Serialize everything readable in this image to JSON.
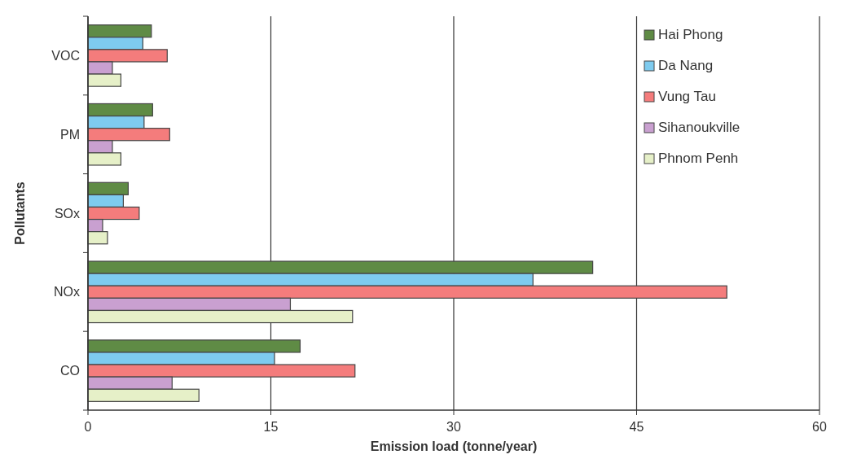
{
  "chart_data": {
    "type": "bar",
    "orientation": "horizontal",
    "xlabel": "Emission load (tonne/year)",
    "ylabel": "Pollutants",
    "categories": [
      "VOC",
      "PM",
      "SOx",
      "NOx",
      "CO"
    ],
    "series": [
      {
        "name": "Hai Phong",
        "color": "#5f8b45",
        "values": [
          5.2,
          5.3,
          3.3,
          41.4,
          17.4
        ]
      },
      {
        "name": "Da Nang",
        "color": "#7ecbef",
        "values": [
          4.5,
          4.6,
          2.9,
          36.5,
          15.3
        ]
      },
      {
        "name": "Vung Tau",
        "color": "#f47c7c",
        "values": [
          6.5,
          6.7,
          4.2,
          52.4,
          21.9
        ]
      },
      {
        "name": "Sihanoukville",
        "color": "#c9a0d0",
        "values": [
          2.0,
          2.0,
          1.2,
          16.6,
          6.9
        ]
      },
      {
        "name": "Phnom Penh",
        "color": "#e6f0c8",
        "values": [
          2.7,
          2.7,
          1.6,
          21.7,
          9.1
        ]
      }
    ],
    "xlim": [
      0,
      60
    ],
    "xticks": [
      0,
      15,
      30,
      45,
      60
    ],
    "grid": "x",
    "legend": "top right"
  }
}
